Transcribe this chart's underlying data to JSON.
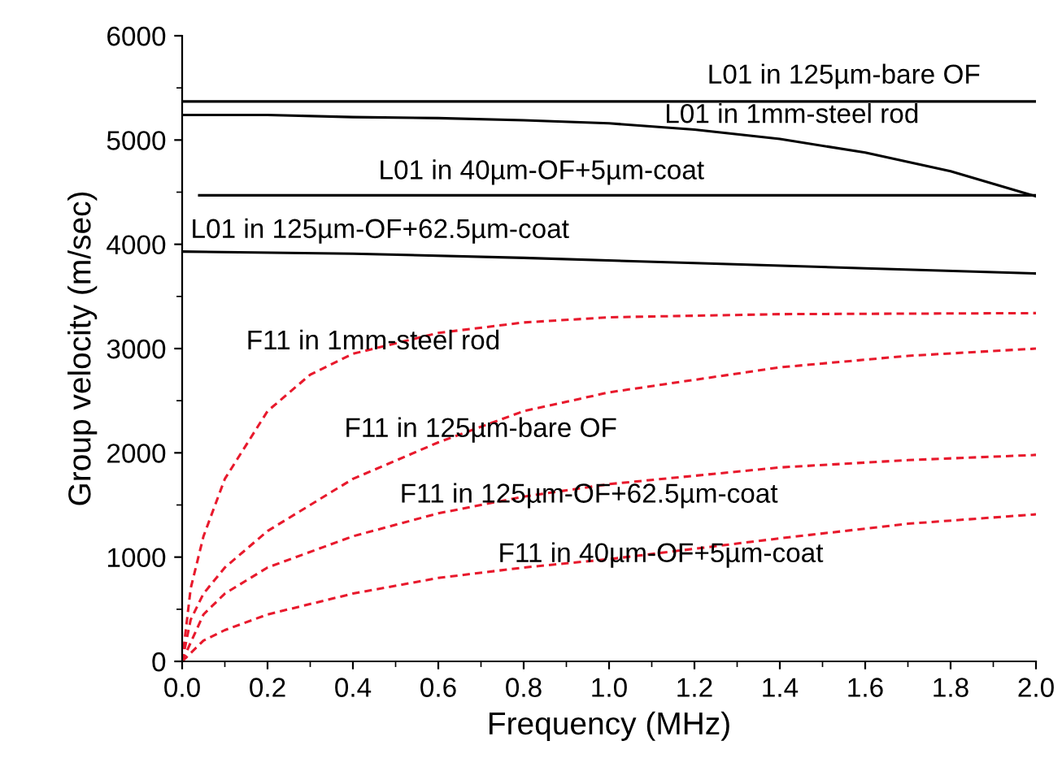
{
  "chart_data": {
    "type": "line",
    "xlabel": "Frequency (MHz)",
    "ylabel": "Group velocity (m/sec)",
    "xlim": [
      0,
      2.0
    ],
    "ylim": [
      0,
      6000
    ],
    "xticks": [
      {
        "value": 0,
        "label": "0.0"
      },
      {
        "value": 0.2,
        "label": "0.2"
      },
      {
        "value": 0.4,
        "label": "0.4"
      },
      {
        "value": 0.6,
        "label": "0.6"
      },
      {
        "value": 0.8,
        "label": "0.8"
      },
      {
        "value": 1.0,
        "label": "1.0"
      },
      {
        "value": 1.2,
        "label": "1.2"
      },
      {
        "value": 1.4,
        "label": "1.4"
      },
      {
        "value": 1.6,
        "label": "1.6"
      },
      {
        "value": 1.8,
        "label": "1.8"
      },
      {
        "value": 2.0,
        "label": "2.0"
      }
    ],
    "yticks": [
      0,
      1000,
      2000,
      3000,
      4000,
      5000,
      6000
    ],
    "grid": false,
    "marker": "none",
    "series": [
      {
        "color": "#000000",
        "line_style": "solid",
        "x": [
          0,
          0.5,
          1.0,
          1.5,
          2.0
        ],
        "values": [
          5370,
          5370,
          5370,
          5370,
          5370
        ]
      },
      {
        "color": "#000000",
        "line_style": "solid",
        "x": [
          0,
          0.2,
          0.4,
          0.6,
          0.8,
          1.0,
          1.2,
          1.4,
          1.6,
          1.8,
          2.0
        ],
        "values": [
          5240,
          5240,
          5220,
          5210,
          5190,
          5160,
          5100,
          5010,
          4880,
          4700,
          4460
        ]
      },
      {
        "color": "#000000",
        "line_style": "solid",
        "x": [
          0.04,
          0.5,
          1.0,
          1.5,
          2.0
        ],
        "values": [
          4470,
          4470,
          4470,
          4470,
          4470
        ]
      },
      {
        "color": "#000000",
        "line_style": "solid",
        "x": [
          0,
          0.4,
          0.8,
          1.2,
          1.6,
          2.0
        ],
        "values": [
          3930,
          3910,
          3870,
          3820,
          3770,
          3720
        ]
      },
      {
        "color": "#e8192c",
        "line_style": "dashed",
        "x": [
          0,
          0.02,
          0.05,
          0.1,
          0.2,
          0.3,
          0.4,
          0.6,
          0.8,
          1.0,
          1.4,
          2.0
        ],
        "values": [
          0,
          700,
          1200,
          1750,
          2400,
          2750,
          2950,
          3150,
          3250,
          3300,
          3330,
          3340
        ]
      },
      {
        "color": "#e8192c",
        "line_style": "dashed",
        "x": [
          0,
          0.02,
          0.05,
          0.1,
          0.2,
          0.4,
          0.6,
          0.8,
          1.0,
          1.4,
          1.7,
          2.0
        ],
        "values": [
          0,
          400,
          650,
          900,
          1250,
          1750,
          2100,
          2400,
          2580,
          2820,
          2930,
          3000
        ]
      },
      {
        "color": "#e8192c",
        "line_style": "dashed",
        "x": [
          0,
          0.05,
          0.1,
          0.2,
          0.4,
          0.6,
          0.8,
          1.0,
          1.4,
          1.7,
          2.0
        ],
        "values": [
          0,
          450,
          650,
          900,
          1200,
          1420,
          1580,
          1700,
          1860,
          1930,
          1980
        ]
      },
      {
        "color": "#e8192c",
        "line_style": "dashed",
        "x": [
          0,
          0.05,
          0.1,
          0.2,
          0.4,
          0.6,
          0.8,
          1.0,
          1.4,
          1.7,
          2.0
        ],
        "values": [
          0,
          200,
          300,
          450,
          650,
          800,
          900,
          980,
          1180,
          1320,
          1410
        ]
      }
    ],
    "annotations": [
      "L01 in 125µm-bare OF",
      "L01 in 1mm-steel rod",
      "L01 in 40µm-OF+5µm-coat",
      "L01 in 125µm-OF+62.5µm-coat",
      "F11 in 1mm-steel rod",
      "F11 in 125µm-bare OF",
      "F11 in 125µm-OF+62.5µm-coat",
      "F11 in 40µm-OF+5µm-coat"
    ]
  }
}
